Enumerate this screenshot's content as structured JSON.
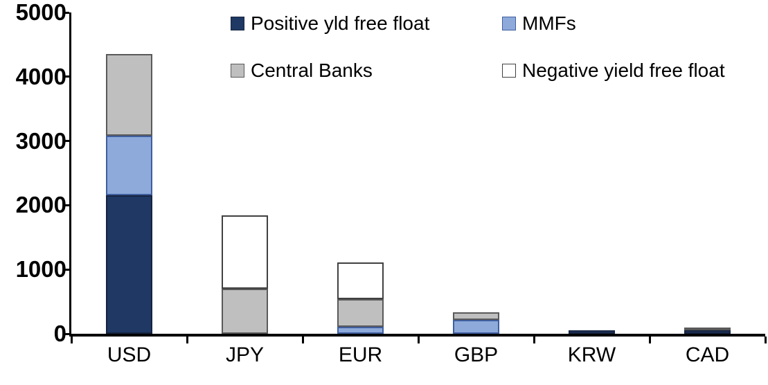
{
  "chart_data": {
    "type": "bar",
    "stacked": true,
    "title": "",
    "xlabel": "",
    "ylabel": "",
    "categories": [
      "USD",
      "JPY",
      "EUR",
      "GBP",
      "KRW",
      "CAD"
    ],
    "series": [
      {
        "name": "Positive yld free float",
        "color": "#1F3864",
        "border": "#16233F",
        "values": [
          2150,
          0,
          0,
          0,
          50,
          50
        ]
      },
      {
        "name": "MMFs",
        "color": "#8EAADB",
        "border": "#3F5E9E",
        "values": [
          930,
          0,
          110,
          220,
          0,
          0
        ]
      },
      {
        "name": "Central Banks",
        "color": "#BFBFBF",
        "border": "#595959",
        "values": [
          1270,
          700,
          430,
          110,
          0,
          30
        ]
      },
      {
        "name": "Negative yield free float",
        "color": "#FFFFFF",
        "border": "#404040",
        "values": [
          0,
          1140,
          570,
          0,
          0,
          0
        ]
      }
    ],
    "totals": [
      4350,
      1840,
      1110,
      330,
      50,
      80
    ],
    "ylim": [
      0,
      5000
    ],
    "yticks": [
      0,
      1000,
      2000,
      3000,
      4000,
      5000
    ],
    "grid": false,
    "legend_position": "top",
    "axis_color": "#000000",
    "background_color": "#FFFFFF"
  }
}
